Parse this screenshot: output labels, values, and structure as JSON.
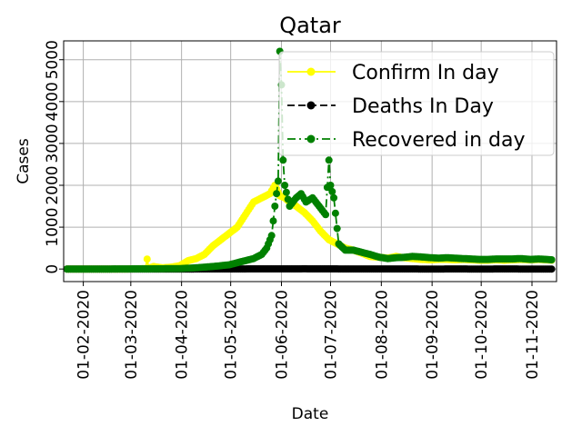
{
  "chart_data": {
    "type": "line",
    "title": "Qatar",
    "xlabel": "Date",
    "ylabel": "Cases",
    "grid": true,
    "legend_position": "top-right",
    "x_range": [
      "2020-01-20",
      "2020-11-16"
    ],
    "ylim": [
      -300,
      5450
    ],
    "x_ticks": [
      {
        "date": "2020-02-01",
        "label": "01-02-2020"
      },
      {
        "date": "2020-03-01",
        "label": "01-03-2020"
      },
      {
        "date": "2020-04-01",
        "label": "01-04-2020"
      },
      {
        "date": "2020-05-01",
        "label": "01-05-2020"
      },
      {
        "date": "2020-06-01",
        "label": "01-06-2020"
      },
      {
        "date": "2020-07-01",
        "label": "01-07-2020"
      },
      {
        "date": "2020-08-01",
        "label": "01-08-2020"
      },
      {
        "date": "2020-09-01",
        "label": "01-09-2020"
      },
      {
        "date": "2020-10-01",
        "label": "01-10-2020"
      },
      {
        "date": "2020-11-01",
        "label": "01-11-2020"
      }
    ],
    "y_ticks": [
      {
        "value": 0,
        "label": "0"
      },
      {
        "value": 1000,
        "label": "1000"
      },
      {
        "value": 2000,
        "label": "2000"
      },
      {
        "value": 3000,
        "label": "3000"
      },
      {
        "value": 4000,
        "label": "4000"
      },
      {
        "value": 5000,
        "label": "5000"
      }
    ],
    "series": [
      {
        "name": "Confirm In day",
        "color": "#ffff00",
        "line_style": "solid",
        "marker": "circle",
        "points": [
          [
            "2020-01-22",
            0
          ],
          [
            "2020-02-01",
            0
          ],
          [
            "2020-02-15",
            0
          ],
          [
            "2020-02-28",
            0
          ],
          [
            "2020-03-05",
            5
          ],
          [
            "2020-03-10",
            10
          ],
          [
            "2020-03-11",
            238
          ],
          [
            "2020-03-12",
            20
          ],
          [
            "2020-03-15",
            60
          ],
          [
            "2020-03-20",
            30
          ],
          [
            "2020-03-25",
            40
          ],
          [
            "2020-03-31",
            80
          ],
          [
            "2020-04-05",
            200
          ],
          [
            "2020-04-10",
            250
          ],
          [
            "2020-04-15",
            350
          ],
          [
            "2020-04-20",
            550
          ],
          [
            "2020-04-25",
            700
          ],
          [
            "2020-04-30",
            850
          ],
          [
            "2020-05-05",
            1000
          ],
          [
            "2020-05-10",
            1300
          ],
          [
            "2020-05-15",
            1600
          ],
          [
            "2020-05-20",
            1700
          ],
          [
            "2020-05-25",
            1800
          ],
          [
            "2020-05-28",
            2000
          ],
          [
            "2020-05-31",
            1750
          ],
          [
            "2020-06-03",
            1700
          ],
          [
            "2020-06-06",
            1600
          ],
          [
            "2020-06-10",
            1500
          ],
          [
            "2020-06-15",
            1350
          ],
          [
            "2020-06-20",
            1150
          ],
          [
            "2020-06-25",
            900
          ],
          [
            "2020-06-30",
            700
          ],
          [
            "2020-07-05",
            600
          ],
          [
            "2020-07-10",
            500
          ],
          [
            "2020-07-15",
            450
          ],
          [
            "2020-07-20",
            380
          ],
          [
            "2020-07-25",
            300
          ],
          [
            "2020-07-31",
            280
          ],
          [
            "2020-08-05",
            260
          ],
          [
            "2020-08-10",
            300
          ],
          [
            "2020-08-15",
            270
          ],
          [
            "2020-08-20",
            250
          ],
          [
            "2020-08-25",
            230
          ],
          [
            "2020-08-31",
            220
          ],
          [
            "2020-09-05",
            230
          ],
          [
            "2020-09-10",
            230
          ],
          [
            "2020-09-15",
            220
          ],
          [
            "2020-09-20",
            230
          ],
          [
            "2020-09-25",
            220
          ],
          [
            "2020-09-30",
            210
          ],
          [
            "2020-10-05",
            210
          ],
          [
            "2020-10-10",
            220
          ],
          [
            "2020-10-15",
            210
          ],
          [
            "2020-10-20",
            220
          ],
          [
            "2020-10-25",
            230
          ],
          [
            "2020-10-31",
            220
          ],
          [
            "2020-11-05",
            230
          ],
          [
            "2020-11-10",
            220
          ],
          [
            "2020-11-13",
            210
          ]
        ]
      },
      {
        "name": "Deaths In Day",
        "color": "#000000",
        "line_style": "dashed",
        "marker": "circle",
        "points": [
          [
            "2020-01-22",
            0
          ],
          [
            "2020-02-15",
            0
          ],
          [
            "2020-03-15",
            0
          ],
          [
            "2020-04-01",
            0
          ],
          [
            "2020-04-15",
            1
          ],
          [
            "2020-05-01",
            2
          ],
          [
            "2020-05-15",
            3
          ],
          [
            "2020-06-01",
            4
          ],
          [
            "2020-06-15",
            5
          ],
          [
            "2020-07-01",
            3
          ],
          [
            "2020-07-15",
            2
          ],
          [
            "2020-08-01",
            1
          ],
          [
            "2020-08-15",
            1
          ],
          [
            "2020-09-01",
            0
          ],
          [
            "2020-09-15",
            1
          ],
          [
            "2020-10-01",
            0
          ],
          [
            "2020-10-15",
            1
          ],
          [
            "2020-11-01",
            0
          ],
          [
            "2020-11-13",
            0
          ]
        ]
      },
      {
        "name": "Recovered in day",
        "color": "#008000",
        "line_style": "dashdot",
        "marker": "circle",
        "points": [
          [
            "2020-01-22",
            0
          ],
          [
            "2020-02-15",
            0
          ],
          [
            "2020-03-15",
            5
          ],
          [
            "2020-03-31",
            10
          ],
          [
            "2020-04-10",
            30
          ],
          [
            "2020-04-20",
            60
          ],
          [
            "2020-04-30",
            100
          ],
          [
            "2020-05-05",
            150
          ],
          [
            "2020-05-10",
            200
          ],
          [
            "2020-05-15",
            250
          ],
          [
            "2020-05-20",
            350
          ],
          [
            "2020-05-23",
            500
          ],
          [
            "2020-05-26",
            800
          ],
          [
            "2020-05-28",
            1500
          ],
          [
            "2020-05-30",
            2100
          ],
          [
            "2020-05-31",
            5200
          ],
          [
            "2020-06-01",
            4400
          ],
          [
            "2020-06-02",
            2600
          ],
          [
            "2020-06-03",
            2000
          ],
          [
            "2020-06-06",
            1500
          ],
          [
            "2020-06-10",
            1700
          ],
          [
            "2020-06-13",
            1800
          ],
          [
            "2020-06-16",
            1600
          ],
          [
            "2020-06-20",
            1700
          ],
          [
            "2020-06-24",
            1500
          ],
          [
            "2020-06-28",
            1300
          ],
          [
            "2020-06-30",
            2600
          ],
          [
            "2020-07-01",
            2000
          ],
          [
            "2020-07-03",
            1700
          ],
          [
            "2020-07-06",
            600
          ],
          [
            "2020-07-10",
            450
          ],
          [
            "2020-07-15",
            450
          ],
          [
            "2020-07-20",
            400
          ],
          [
            "2020-07-25",
            350
          ],
          [
            "2020-07-31",
            280
          ],
          [
            "2020-08-05",
            250
          ],
          [
            "2020-08-10",
            270
          ],
          [
            "2020-08-15",
            280
          ],
          [
            "2020-08-20",
            300
          ],
          [
            "2020-08-25",
            290
          ],
          [
            "2020-08-31",
            270
          ],
          [
            "2020-09-05",
            260
          ],
          [
            "2020-09-10",
            270
          ],
          [
            "2020-09-15",
            260
          ],
          [
            "2020-09-20",
            250
          ],
          [
            "2020-09-25",
            240
          ],
          [
            "2020-09-30",
            230
          ],
          [
            "2020-10-05",
            230
          ],
          [
            "2020-10-10",
            240
          ],
          [
            "2020-10-15",
            240
          ],
          [
            "2020-10-20",
            240
          ],
          [
            "2020-10-25",
            250
          ],
          [
            "2020-10-31",
            230
          ],
          [
            "2020-11-05",
            240
          ],
          [
            "2020-11-10",
            230
          ],
          [
            "2020-11-13",
            220
          ]
        ]
      }
    ]
  }
}
